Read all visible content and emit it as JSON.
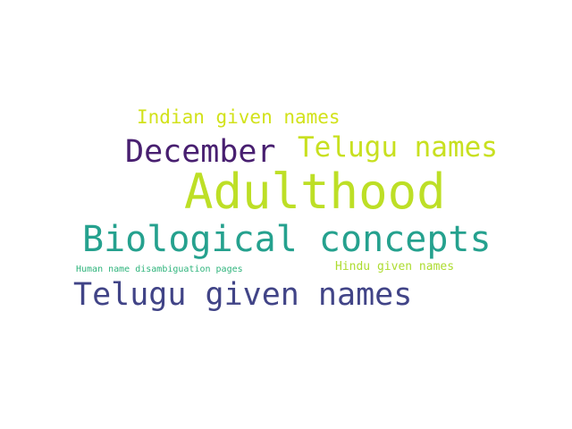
{
  "words": [
    {
      "text": "Indian given names",
      "color": "#d2e21b"
    },
    {
      "text": "December",
      "color": "#481f70"
    },
    {
      "text": "Telugu names",
      "color": "#c8e020"
    },
    {
      "text": "Adulthood",
      "color": "#bddf26"
    },
    {
      "text": "Biological concepts",
      "color": "#25a18e"
    },
    {
      "text": "Human name disambiguation pages",
      "color": "#2fb47c"
    },
    {
      "text": "Hindu given names",
      "color": "#addc30"
    },
    {
      "text": "Telugu given names",
      "color": "#414487"
    }
  ]
}
